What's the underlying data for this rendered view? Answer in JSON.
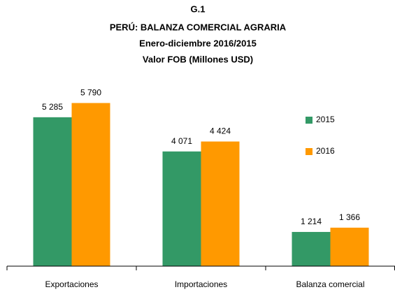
{
  "chart_data": {
    "type": "bar",
    "title": "G.1",
    "subtitle": [
      "PERÚ: BALANZA COMERCIAL AGRARIA",
      "Enero-diciembre 2016/2015",
      "Valor FOB (Millones USD)"
    ],
    "categories": [
      "Exportaciones",
      "Importaciones",
      "Balanza comercial"
    ],
    "series": [
      {
        "name": "2015",
        "color": "#339966",
        "values": [
          5285,
          4071,
          1214
        ],
        "value_labels": [
          "5 285",
          "4 071",
          "1 214"
        ]
      },
      {
        "name": "2016",
        "color": "#ff9900",
        "values": [
          5790,
          4424,
          1366
        ],
        "value_labels": [
          "5 790",
          "4 424",
          "1 366"
        ]
      }
    ],
    "ylim": [
      0,
      6000
    ],
    "legend": "right"
  }
}
